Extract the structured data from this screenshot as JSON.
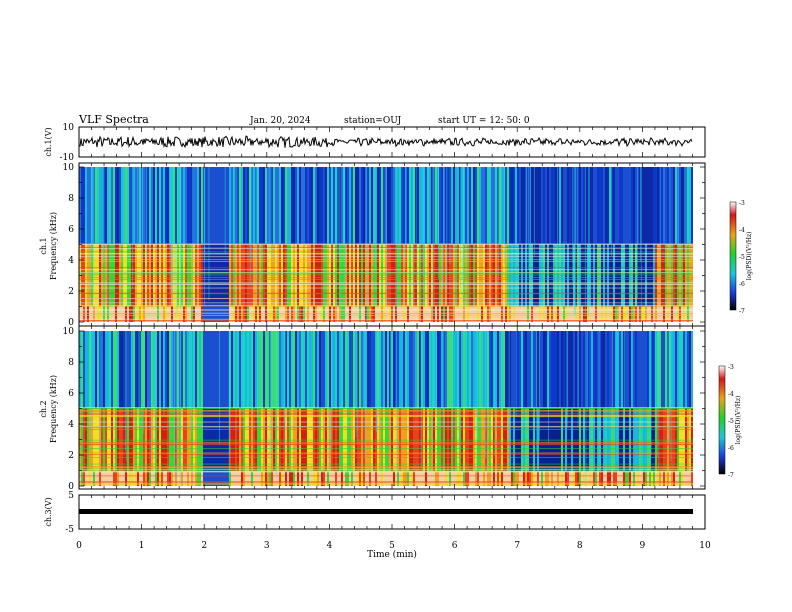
{
  "header": {
    "title": "VLF Spectra",
    "date": "Jan. 20, 2024",
    "station": "station=OUJ",
    "start": "start UT =  12: 50: 0"
  },
  "chart_data": [
    {
      "type": "line",
      "panel": "ch1",
      "ylabel": "ch.1(V)",
      "ylim": [
        -10,
        10
      ],
      "ytick_labels": [
        "10",
        "-10"
      ],
      "xlim": [
        0,
        10
      ],
      "description_values": {
        "mean": 0,
        "amplitude_approx": 3
      }
    },
    {
      "type": "heatmap",
      "panel": "ch1-spectrogram",
      "ylabel": "ch.1\nFrequency (kHz)",
      "ylabel_line1": "ch.1",
      "ylabel_line2": "Frequency (kHz)",
      "ylim": [
        0,
        10
      ],
      "xlim": [
        0,
        10
      ],
      "ytick_labels": [
        "0",
        "2",
        "4",
        "6",
        "8",
        "10"
      ],
      "colorbar": {
        "label": "log(PSD)(V²/Hz)",
        "range": [
          -7,
          -3
        ],
        "tick_labels": [
          "-3",
          "-4",
          "-5",
          "-6",
          "-7"
        ]
      }
    },
    {
      "type": "heatmap",
      "panel": "ch2-spectrogram",
      "ylabel_line1": "ch.2",
      "ylabel_line2": "Frequency (kHz)",
      "ylim": [
        0,
        10
      ],
      "xlim": [
        0,
        10
      ],
      "ytick_labels": [
        "0",
        "2",
        "4",
        "6",
        "8",
        "10"
      ],
      "colorbar": {
        "label": "log(PSD)(V²/Hz)",
        "range": [
          -7,
          -3
        ],
        "tick_labels": [
          "-3",
          "-4",
          "-5",
          "-6",
          "-7"
        ]
      }
    },
    {
      "type": "line",
      "panel": "ch3",
      "ylabel": "ch.3(V)",
      "ylim": [
        -5,
        5
      ],
      "ytick_labels": [
        "5",
        "-5"
      ],
      "xlim": [
        0,
        10
      ],
      "value": -0.5
    }
  ],
  "xaxis": {
    "label": "Time (min)",
    "tick_labels": [
      "0",
      "1",
      "2",
      "3",
      "4",
      "5",
      "6",
      "7",
      "8",
      "9",
      "10"
    ]
  }
}
